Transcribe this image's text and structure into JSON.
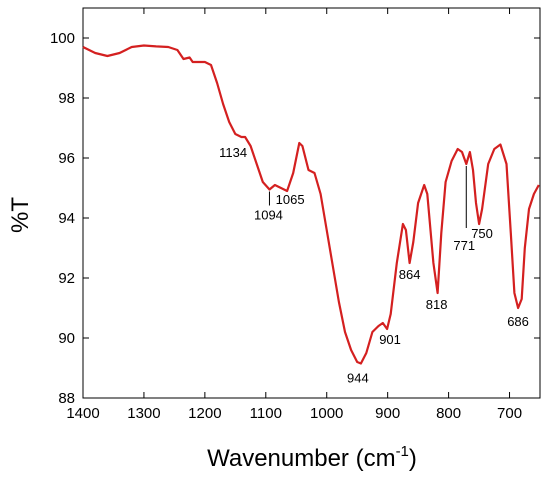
{
  "chart_data": {
    "type": "line",
    "ylabel": "%T",
    "xlabel": "Wavenumber (cm",
    "xlabel_sup": "-1",
    "xlabel_end": ")",
    "xlim": [
      1400,
      650
    ],
    "ylim": [
      88,
      101
    ],
    "xticks": [
      1400,
      1300,
      1200,
      1100,
      1000,
      900,
      800,
      700
    ],
    "yticks": [
      88,
      90,
      92,
      94,
      96,
      98,
      100
    ],
    "series": [
      {
        "color": "#d42020",
        "x": [
          1400,
          1380,
          1360,
          1340,
          1320,
          1300,
          1280,
          1260,
          1245,
          1235,
          1225,
          1220,
          1200,
          1190,
          1180,
          1170,
          1160,
          1150,
          1140,
          1134,
          1125,
          1115,
          1105,
          1094,
          1085,
          1075,
          1065,
          1055,
          1045,
          1040,
          1030,
          1020,
          1010,
          1000,
          990,
          980,
          970,
          960,
          950,
          944,
          935,
          925,
          915,
          908,
          901,
          895,
          885,
          875,
          870,
          864,
          858,
          850,
          840,
          835,
          825,
          818,
          812,
          805,
          795,
          785,
          778,
          771,
          765,
          760,
          755,
          750,
          745,
          735,
          725,
          715,
          705,
          698,
          692,
          686,
          680,
          675,
          668,
          660,
          652
        ],
        "values": [
          99.7,
          99.5,
          99.4,
          99.5,
          99.7,
          99.75,
          99.72,
          99.7,
          99.6,
          99.3,
          99.35,
          99.2,
          99.2,
          99.1,
          98.5,
          97.8,
          97.2,
          96.8,
          96.7,
          96.7,
          96.4,
          95.8,
          95.2,
          94.95,
          95.1,
          95.0,
          94.9,
          95.5,
          96.5,
          96.4,
          95.6,
          95.5,
          94.8,
          93.6,
          92.4,
          91.2,
          90.2,
          89.6,
          89.2,
          89.15,
          89.5,
          90.2,
          90.4,
          90.5,
          90.3,
          90.8,
          92.5,
          93.8,
          93.6,
          92.5,
          93.2,
          94.5,
          95.1,
          94.8,
          92.5,
          91.5,
          93.5,
          95.2,
          95.9,
          96.3,
          96.2,
          95.8,
          96.2,
          95.6,
          94.5,
          93.8,
          94.3,
          95.8,
          96.3,
          96.45,
          95.8,
          93.5,
          91.5,
          91.0,
          91.3,
          93.0,
          94.3,
          94.8,
          95.1
        ]
      }
    ],
    "annotations": [
      {
        "text": "1134",
        "x": 1134,
        "y": 96.7
      },
      {
        "text": "1094",
        "x": 1094,
        "y": 94.95
      },
      {
        "text": "1065",
        "x": 1065,
        "y": 94.9
      },
      {
        "text": "944",
        "x": 944,
        "y": 89.15
      },
      {
        "text": "901",
        "x": 901,
        "y": 90.3
      },
      {
        "text": "864",
        "x": 864,
        "y": 92.5
      },
      {
        "text": "818",
        "x": 818,
        "y": 91.5
      },
      {
        "text": "771",
        "x": 771,
        "y": 95.8
      },
      {
        "text": "750",
        "x": 750,
        "y": 93.8
      },
      {
        "text": "686",
        "x": 686,
        "y": 91.0
      }
    ]
  }
}
